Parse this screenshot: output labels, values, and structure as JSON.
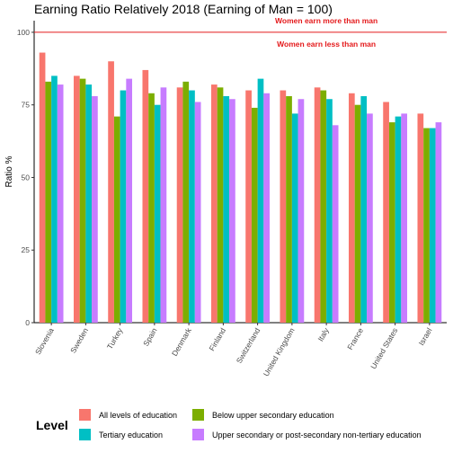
{
  "chart_data": {
    "type": "bar",
    "title": "Earning Ratio Relatively 2018 (Earning of Man = 100)",
    "xlabel": "",
    "ylabel": "Ratio %",
    "ylim": [
      0,
      104
    ],
    "yticks": [
      0,
      25,
      50,
      75,
      100
    ],
    "grid": false,
    "legend_title": "Level",
    "legend_position": "bottom",
    "reference_line": {
      "value": 100,
      "color": "#e41a1c"
    },
    "annotations": [
      {
        "text": "Women earn more than man",
        "x": "Italy",
        "y": 104,
        "color": "#e41a1c"
      },
      {
        "text": "Women earn less than man",
        "x": "Italy",
        "y": 96,
        "color": "#e41a1c"
      }
    ],
    "categories": [
      "Slovenia",
      "Sweden",
      "Turkey",
      "Spain",
      "Denmark",
      "Finland",
      "Switzerland",
      "United Kingdom",
      "Italy",
      "France",
      "United States",
      "Israel"
    ],
    "series": [
      {
        "name": "All levels of education",
        "color": "#F8766D",
        "values": [
          93,
          85,
          90,
          87,
          81,
          82,
          80,
          80,
          81,
          79,
          76,
          72
        ]
      },
      {
        "name": "Below upper secondary education",
        "color": "#7CAE00",
        "values": [
          83,
          84,
          71,
          79,
          83,
          81,
          74,
          78,
          80,
          75,
          69,
          67
        ]
      },
      {
        "name": "Tertiary education",
        "color": "#00BFC4",
        "values": [
          85,
          82,
          80,
          75,
          80,
          78,
          84,
          72,
          77,
          78,
          71,
          67
        ]
      },
      {
        "name": "Upper secondary or post-secondary non-tertiary education",
        "color": "#C77CFF",
        "values": [
          82,
          78,
          84,
          81,
          76,
          77,
          79,
          77,
          68,
          72,
          72,
          69
        ]
      }
    ]
  }
}
